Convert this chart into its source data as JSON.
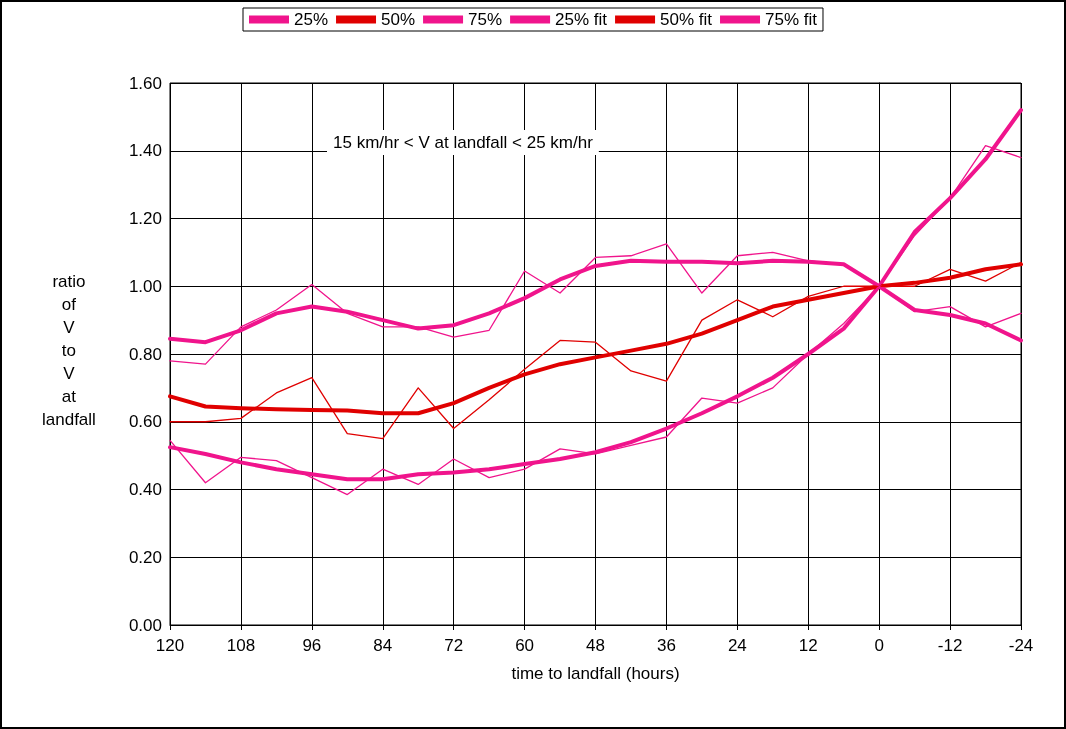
{
  "chart_data": {
    "type": "line",
    "xlabel": "time to landfall (hours)",
    "ylabel": "ratio of V to V at landfall",
    "annotations": [
      "15 km/hr < V at landfall < 25 km/hr"
    ],
    "x": [
      120,
      114,
      108,
      102,
      96,
      90,
      84,
      78,
      72,
      66,
      60,
      54,
      48,
      42,
      36,
      30,
      24,
      18,
      12,
      6,
      0,
      -6,
      -12,
      -18,
      -24
    ],
    "xlim": [
      120,
      -24
    ],
    "xticks": [
      120,
      108,
      96,
      84,
      72,
      60,
      48,
      36,
      24,
      12,
      0,
      -12,
      -24
    ],
    "ylim": [
      0,
      1.6
    ],
    "yticks": [
      {
        "value": 0,
        "label": "0.00"
      },
      {
        "value": 0.2,
        "label": "0.20"
      },
      {
        "value": 0.4,
        "label": "0.40"
      },
      {
        "value": 0.6,
        "label": "0.60"
      },
      {
        "value": 0.8,
        "label": "0.80"
      },
      {
        "value": 1,
        "label": "1.00"
      },
      {
        "value": 1.2,
        "label": "1.20"
      },
      {
        "value": 1.4,
        "label": "1.40"
      },
      {
        "value": 1.6,
        "label": "1.60"
      }
    ],
    "grid": true,
    "legend": "top",
    "marker": "none",
    "line_style": "solid",
    "series": [
      {
        "name": "25%",
        "color": "#f0148c",
        "values": [
          0.545,
          0.42,
          0.495,
          0.485,
          0.435,
          0.385,
          0.46,
          0.415,
          0.49,
          0.435,
          0.46,
          0.52,
          0.505,
          0.53,
          0.555,
          0.67,
          0.655,
          0.7,
          0.8,
          0.89,
          1.0,
          1.15,
          1.26,
          1.415,
          1.38
        ]
      },
      {
        "name": "50%",
        "color": "#e00000",
        "values": [
          0.6,
          0.6,
          0.61,
          0.685,
          0.73,
          0.565,
          0.55,
          0.7,
          0.58,
          0.665,
          0.755,
          0.84,
          0.835,
          0.75,
          0.72,
          0.9,
          0.96,
          0.91,
          0.97,
          1.0,
          1.0,
          1.0,
          1.05,
          1.015,
          1.07
        ]
      },
      {
        "name": "75%",
        "color": "#f0148c",
        "values": [
          0.78,
          0.77,
          0.88,
          0.93,
          1.005,
          0.92,
          0.88,
          0.88,
          0.85,
          0.87,
          1.045,
          0.98,
          1.085,
          1.09,
          1.125,
          0.98,
          1.09,
          1.1,
          1.075,
          1.065,
          1.0,
          0.925,
          0.94,
          0.88,
          0.92
        ]
      },
      {
        "name": "25% fit",
        "type": "line",
        "color": "#f0148c",
        "x": [
          120,
          114,
          108,
          102,
          96,
          90,
          84,
          78,
          72,
          66,
          60,
          54,
          48,
          42,
          36,
          30,
          24,
          18,
          12,
          6,
          0,
          -6,
          -12,
          -18,
          -24
        ],
        "values": [
          0.525,
          0.505,
          0.48,
          0.46,
          0.445,
          0.43,
          0.43,
          0.445,
          0.45,
          0.46,
          0.475,
          0.49,
          0.51,
          0.54,
          0.58,
          0.625,
          0.675,
          0.73,
          0.8,
          0.875,
          1.0,
          1.16,
          1.26,
          1.375,
          1.52
        ]
      },
      {
        "name": "50% fit",
        "type": "line",
        "color": "#e00000",
        "x": [
          120,
          114,
          108,
          102,
          96,
          90,
          84,
          78,
          72,
          66,
          60,
          54,
          48,
          42,
          36,
          30,
          24,
          18,
          12,
          6,
          0,
          -6,
          -12,
          -18,
          -24
        ],
        "values": [
          0.675,
          0.645,
          0.64,
          0.637,
          0.635,
          0.633,
          0.625,
          0.625,
          0.655,
          0.7,
          0.74,
          0.77,
          0.79,
          0.81,
          0.83,
          0.86,
          0.9,
          0.94,
          0.96,
          0.98,
          1.0,
          1.01,
          1.025,
          1.05,
          1.065
        ]
      },
      {
        "name": "75% fit",
        "type": "line",
        "color": "#f0148c",
        "x": [
          120,
          114,
          108,
          102,
          96,
          90,
          84,
          78,
          72,
          66,
          60,
          54,
          48,
          42,
          36,
          30,
          24,
          18,
          12,
          6,
          0,
          -6,
          -12,
          -18,
          -24
        ],
        "values": [
          0.845,
          0.835,
          0.87,
          0.92,
          0.94,
          0.925,
          0.9,
          0.875,
          0.885,
          0.92,
          0.965,
          1.02,
          1.06,
          1.075,
          1.072,
          1.072,
          1.068,
          1.075,
          1.072,
          1.065,
          1.0,
          0.93,
          0.915,
          0.89,
          0.84
        ]
      }
    ]
  }
}
